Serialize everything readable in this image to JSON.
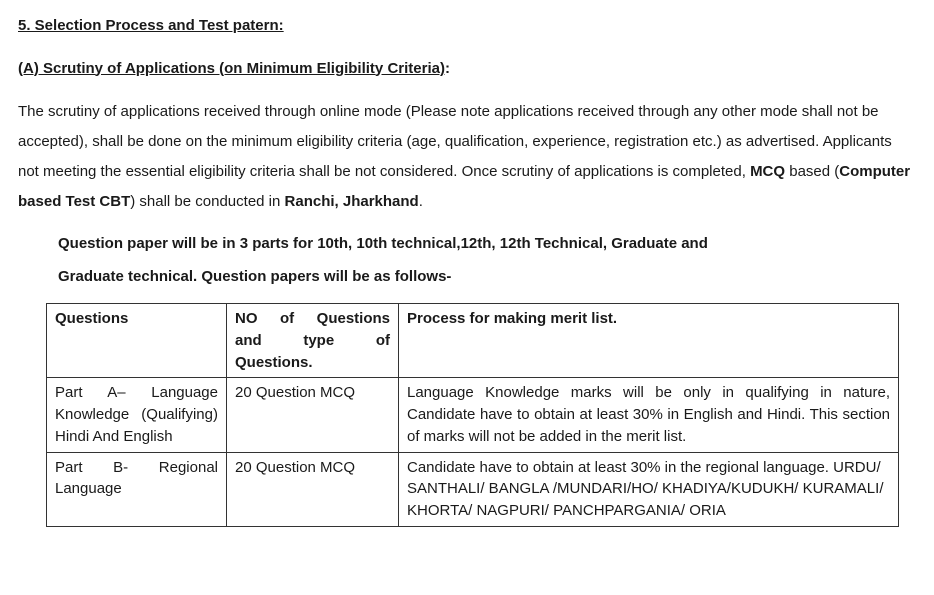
{
  "heading5": "5. Selection Process and Test patern:",
  "subheadingA_u": "(A) Scrutiny of Applications (on Minimum Eligibility Criteria)",
  "subheadingA_tail": ":",
  "para_pre": "The scrutiny of applications received through online mode (Please note applications received through any other mode shall not be accepted), shall be done on the minimum eligibility criteria (age, qualification, experience, registration etc.) as advertised. Applicants not meeting the essential eligibility criteria shall be not considered. Once scrutiny of applications is completed, ",
  "para_mcq": "MCQ",
  "para_mid": " based (",
  "para_cbt": "Computer based Test CBT",
  "para_mid2": ") shall be conducted in ",
  "para_loc": "Ranchi, Jharkhand",
  "para_tail": ".",
  "qnote_line1": "Question paper will be in 3 parts for 10th,  10th technical,12th, 12th Technical, Graduate and",
  "qnote_line2": "Graduate technical. Question papers will be as follows-",
  "table": {
    "header": {
      "c1": "Questions",
      "c2a": "NO of Questions",
      "c2b": "and type of",
      "c2c": "Questions.",
      "c3": "Process  for making merit list."
    },
    "rowA": {
      "c1": "Part A– Language Knowledge (Qualifying) Hindi And English",
      "c2": "20 Question MCQ",
      "c3": "Language Knowledge marks will be only in qualifying in nature, Candidate have to obtain at least 30% in English and Hindi. This section of marks will not be added in the merit list."
    },
    "rowB": {
      "c1": "Part B- Regional Language",
      "c2": "20 Question MCQ",
      "c3": "Candidate have to obtain at least 30% in the regional language. URDU/ SANTHALI/ BANGLA /MUNDARI/HO/ KHADIYA/KUDUKH/ KURAMALI/ KHORTA/ NAGPURI/ PANCHPARGANIA/ ORIA"
    }
  }
}
